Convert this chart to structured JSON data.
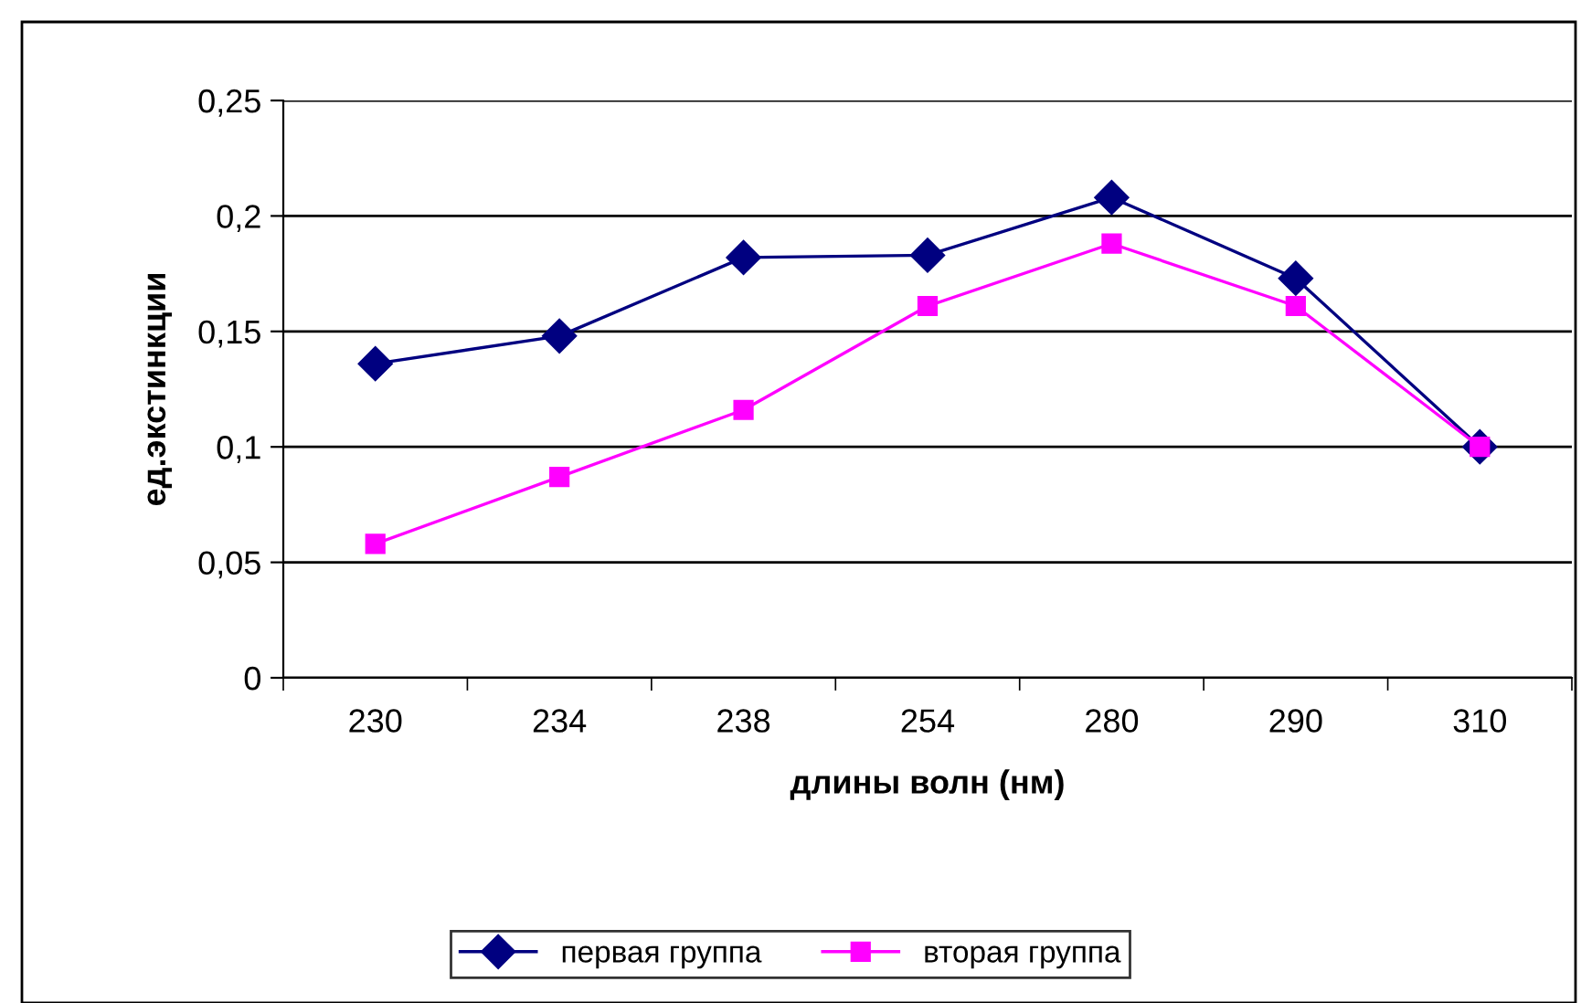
{
  "chart_data": {
    "type": "line",
    "xlabel": "длины волн (нм)",
    "ylabel": "ед.экстинкции",
    "categories": [
      "230",
      "234",
      "238",
      "254",
      "280",
      "290",
      "310"
    ],
    "series": [
      {
        "name": "первая группа",
        "color": "#000080",
        "marker": "diamond",
        "values": [
          0.136,
          0.148,
          0.182,
          0.183,
          0.208,
          0.173,
          0.1
        ]
      },
      {
        "name": "вторая группа",
        "color": "#ff00ff",
        "marker": "square",
        "values": [
          0.058,
          0.087,
          0.116,
          0.161,
          0.188,
          0.161,
          0.1
        ]
      }
    ],
    "ylim": [
      0,
      0.25
    ],
    "yticks": [
      {
        "value": 0,
        "label": "0"
      },
      {
        "value": 0.05,
        "label": "0,05"
      },
      {
        "value": 0.1,
        "label": "0,1"
      },
      {
        "value": 0.15,
        "label": "0,15"
      },
      {
        "value": 0.2,
        "label": "0,2"
      },
      {
        "value": 0.25,
        "label": "0,25"
      }
    ],
    "grid": "y",
    "legend": "bottom"
  }
}
